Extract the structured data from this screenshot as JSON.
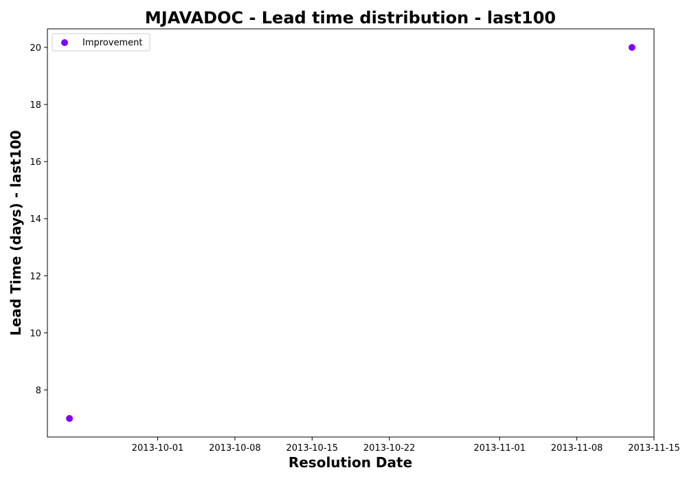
{
  "chart_data": {
    "type": "scatter",
    "title": "MJAVADOC - Lead time distribution - last100",
    "xlabel": "Resolution Date",
    "ylabel": "Lead Time (days) - last100",
    "x_type": "date",
    "xlim": [
      "2013-09-21",
      "2013-11-15"
    ],
    "ylim": [
      6.35,
      20.65
    ],
    "x_ticks": [
      "2013-10-01",
      "2013-10-08",
      "2013-10-15",
      "2013-10-22",
      "2013-11-01",
      "2013-11-08",
      "2013-11-15"
    ],
    "y_ticks": [
      8,
      10,
      12,
      14,
      16,
      18,
      20
    ],
    "grid": false,
    "legend_position": "top-left",
    "series": [
      {
        "name": "Improvement",
        "color": "#7f00ff",
        "points": [
          {
            "x": "2013-09-23",
            "y": 7
          },
          {
            "x": "2013-11-13",
            "y": 20
          }
        ]
      }
    ]
  }
}
